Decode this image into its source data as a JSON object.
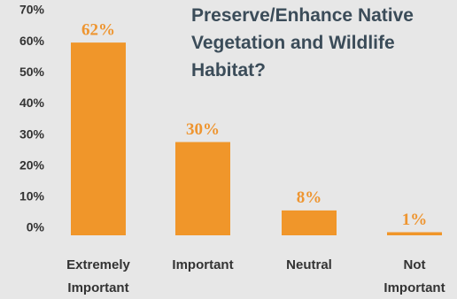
{
  "chart_data": {
    "type": "bar",
    "title": "Preserve/Enhance Native Vegetation and Wildlife Habitat?",
    "categories": [
      [
        "Extremely",
        "Important"
      ],
      [
        "Important"
      ],
      [
        "Neutral"
      ],
      [
        "Not",
        "Important"
      ]
    ],
    "values": [
      62,
      30,
      8,
      1
    ],
    "value_labels": [
      "62%",
      "30%",
      "8%",
      "1%"
    ],
    "color": "#f0962a",
    "ylim": [
      0,
      70
    ],
    "yticks": [
      {
        "value": 0,
        "label": "0%"
      },
      {
        "value": 10,
        "label": "10%"
      },
      {
        "value": 20,
        "label": "20%"
      },
      {
        "value": 30,
        "label": "30%"
      },
      {
        "value": 40,
        "label": "40%"
      },
      {
        "value": 50,
        "label": "50%"
      },
      {
        "value": 60,
        "label": "60%"
      },
      {
        "value": 70,
        "label": "70%"
      }
    ],
    "grid": false
  }
}
